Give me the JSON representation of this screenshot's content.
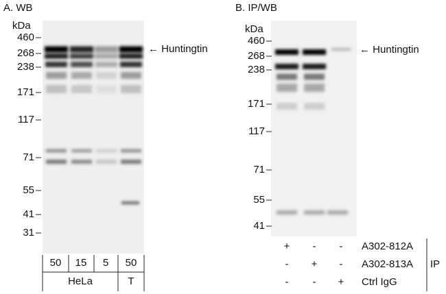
{
  "panel_a": {
    "title": "A. WB",
    "unit": "kDa",
    "markers": [
      "460",
      "268",
      "238",
      "171",
      "117",
      "71",
      "55",
      "41",
      "31"
    ],
    "target": "Huntingtin",
    "amounts": [
      "50",
      "15",
      "5",
      "50"
    ],
    "groups": [
      "HeLa",
      "T"
    ]
  },
  "panel_b": {
    "title": "B. IP/WB",
    "unit": "kDa",
    "markers": [
      "460",
      "268",
      "238",
      "171",
      "117",
      "71",
      "55",
      "41"
    ],
    "target": "Huntingtin",
    "rows": [
      {
        "label": "A302-812A",
        "signs": [
          "+",
          "-",
          "-"
        ]
      },
      {
        "label": "A302-813A",
        "signs": [
          "-",
          "+",
          "-"
        ]
      },
      {
        "label": "Ctrl IgG",
        "signs": [
          "-",
          "-",
          "+"
        ]
      }
    ],
    "group_label": "IP"
  }
}
